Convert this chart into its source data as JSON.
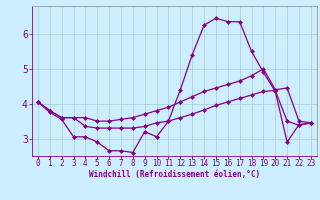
{
  "xlabel": "Windchill (Refroidissement éolien,°C)",
  "line_color": "#880088",
  "bg_color": "#cceeff",
  "grid_color": "#aacccc",
  "xlim": [
    -0.5,
    23.5
  ],
  "ylim": [
    2.5,
    6.8
  ],
  "yticks": [
    3,
    4,
    5,
    6
  ],
  "xticks": [
    0,
    1,
    2,
    3,
    4,
    5,
    6,
    7,
    8,
    9,
    10,
    11,
    12,
    13,
    14,
    15,
    16,
    17,
    18,
    19,
    20,
    21,
    22,
    23
  ],
  "line1_x": [
    0,
    1,
    2,
    3,
    4,
    5,
    6,
    7,
    8,
    9,
    10,
    11,
    12,
    13,
    14,
    15,
    16,
    17,
    18,
    19,
    20,
    21,
    22,
    23
  ],
  "line1_y": [
    4.05,
    3.75,
    3.55,
    3.05,
    3.05,
    2.9,
    2.65,
    2.65,
    2.6,
    3.2,
    3.05,
    3.5,
    4.4,
    5.4,
    6.25,
    6.45,
    6.35,
    6.35,
    5.5,
    4.9,
    4.35,
    2.9,
    3.4,
    3.45
  ],
  "line2_x": [
    0,
    1,
    2,
    3,
    4,
    5,
    6,
    7,
    8,
    9,
    10,
    11,
    12,
    13,
    14,
    15,
    16,
    17,
    18,
    19,
    20,
    21,
    22,
    23
  ],
  "line2_y": [
    4.05,
    3.8,
    3.6,
    3.6,
    3.6,
    3.5,
    3.5,
    3.55,
    3.6,
    3.7,
    3.8,
    3.9,
    4.05,
    4.2,
    4.35,
    4.45,
    4.55,
    4.65,
    4.8,
    5.0,
    4.4,
    4.45,
    3.5,
    3.45
  ],
  "line3_x": [
    0,
    1,
    2,
    3,
    4,
    5,
    6,
    7,
    8,
    9,
    10,
    11,
    12,
    13,
    14,
    15,
    16,
    17,
    18,
    19,
    20,
    21,
    22,
    23
  ],
  "line3_y": [
    4.05,
    3.8,
    3.6,
    3.6,
    3.35,
    3.3,
    3.3,
    3.3,
    3.3,
    3.35,
    3.45,
    3.5,
    3.6,
    3.7,
    3.82,
    3.95,
    4.05,
    4.15,
    4.25,
    4.35,
    4.38,
    3.5,
    3.38,
    3.45
  ],
  "tick_fontsize": 5.5,
  "xlabel_fontsize": 5.5,
  "ylabel_fontsize": 7,
  "marker_size": 2.5,
  "line_width": 0.9
}
